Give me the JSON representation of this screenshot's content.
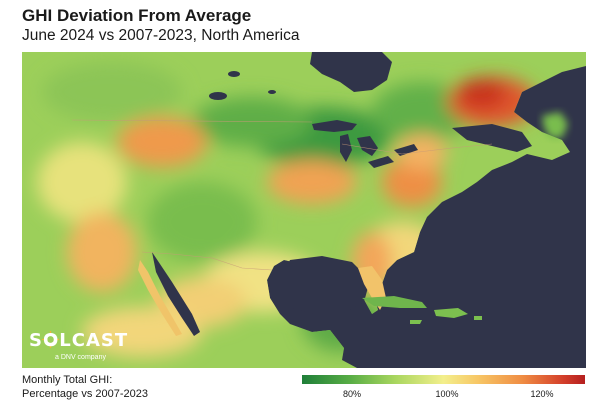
{
  "header": {
    "title": "GHI Deviation From Average",
    "subtitle": "June 2024 vs 2007-2023, North America"
  },
  "logo": {
    "name": "SOLCAST",
    "tagline": "a DNV company"
  },
  "legend": {
    "label_line1": "Monthly Total GHI:",
    "label_line2": "Percentage vs 2007-2023",
    "ticks": [
      "80%",
      "100%",
      "120%"
    ]
  },
  "colors": {
    "ocean": "#30344a",
    "below_average": "#3d9a3f",
    "average": "#f3ef8c",
    "above_average": "#d4402b"
  }
}
